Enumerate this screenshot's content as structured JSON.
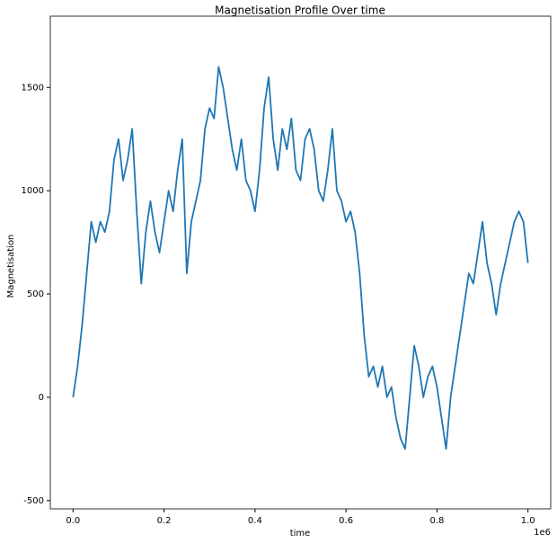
{
  "chart_data": {
    "type": "line",
    "title": "Magnetisation Profile Over time",
    "xlabel": "time",
    "ylabel": "Magnetisation",
    "x_offset_label": "1e6",
    "color": "#1f77b4",
    "x": [
      0,
      10000,
      20000,
      30000,
      40000,
      50000,
      60000,
      70000,
      80000,
      90000,
      100000,
      110000,
      120000,
      130000,
      140000,
      150000,
      160000,
      170000,
      180000,
      190000,
      200000,
      210000,
      220000,
      230000,
      240000,
      250000,
      260000,
      270000,
      280000,
      290000,
      300000,
      310000,
      320000,
      330000,
      340000,
      350000,
      360000,
      370000,
      380000,
      390000,
      400000,
      410000,
      420000,
      430000,
      440000,
      450000,
      460000,
      470000,
      480000,
      490000,
      500000,
      510000,
      520000,
      530000,
      540000,
      550000,
      560000,
      570000,
      580000,
      590000,
      600000,
      610000,
      620000,
      630000,
      640000,
      650000,
      660000,
      670000,
      680000,
      690000,
      700000,
      710000,
      720000,
      730000,
      740000,
      750000,
      760000,
      770000,
      780000,
      790000,
      800000,
      810000,
      820000,
      830000,
      840000,
      850000,
      860000,
      870000,
      880000,
      890000,
      900000,
      910000,
      920000,
      930000,
      940000,
      950000,
      960000,
      970000,
      980000,
      990000,
      1000000
    ],
    "values": [
      0,
      150,
      350,
      600,
      850,
      750,
      850,
      800,
      900,
      1150,
      1250,
      1050,
      1150,
      1300,
      900,
      550,
      800,
      950,
      800,
      700,
      850,
      1000,
      900,
      1100,
      1250,
      600,
      850,
      950,
      1050,
      1300,
      1400,
      1350,
      1600,
      1500,
      1350,
      1200,
      1100,
      1250,
      1050,
      1000,
      900,
      1100,
      1400,
      1550,
      1250,
      1100,
      1300,
      1200,
      1350,
      1100,
      1050,
      1250,
      1300,
      1200,
      1000,
      950,
      1100,
      1300,
      1000,
      950,
      850,
      900,
      800,
      600,
      300,
      100,
      150,
      50,
      150,
      0,
      50,
      -100,
      -200,
      -250,
      0,
      250,
      150,
      0,
      100,
      150,
      50,
      -100,
      -250,
      0,
      150,
      300,
      450,
      600,
      550,
      700,
      850,
      650,
      550,
      400,
      550,
      650,
      750,
      850,
      900,
      850,
      650
    ],
    "xlim": [
      -50000,
      1050000
    ],
    "ylim": [
      -540,
      1845
    ],
    "xticks": [
      {
        "value": 0,
        "label": "0.0"
      },
      {
        "value": 200000,
        "label": "0.2"
      },
      {
        "value": 400000,
        "label": "0.4"
      },
      {
        "value": 600000,
        "label": "0.6"
      },
      {
        "value": 800000,
        "label": "0.8"
      },
      {
        "value": 1000000,
        "label": "1.0"
      }
    ],
    "yticks": [
      -500,
      0,
      500,
      1000,
      1500
    ],
    "grid": false
  }
}
